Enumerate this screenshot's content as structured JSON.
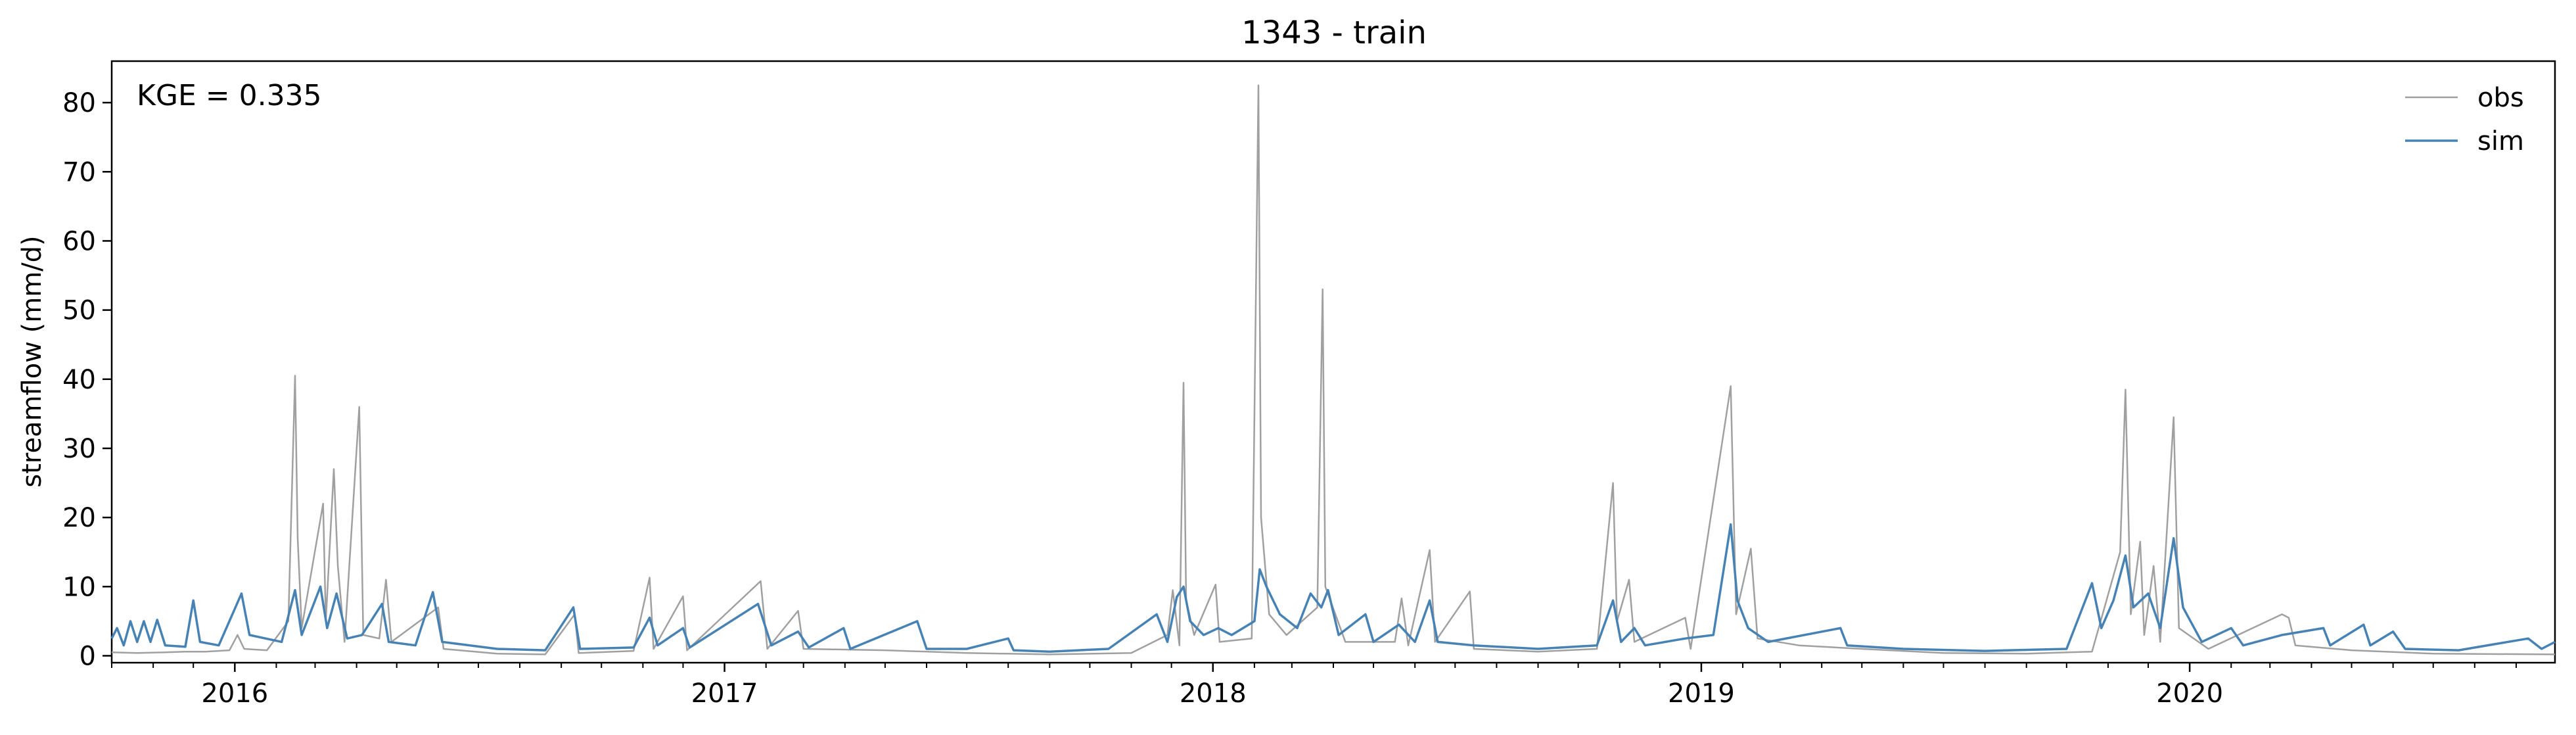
{
  "chart_data": {
    "type": "line",
    "title": "1343 - train",
    "xlabel": "",
    "ylabel": "streamflow (mm/d)",
    "annotation": "KGE = 0.335",
    "x_type": "date",
    "xlim": [
      "2015-10-01",
      "2020-09-30"
    ],
    "ylim": [
      -1,
      86
    ],
    "y_ticks": [
      0,
      10,
      20,
      30,
      40,
      50,
      60,
      70,
      80
    ],
    "x_tick_labels": [
      "2016",
      "2017",
      "2018",
      "2019",
      "2020"
    ],
    "x_ticks": [
      "2016-01-01",
      "2017-01-01",
      "2018-01-01",
      "2019-01-01",
      "2020-01-01"
    ],
    "grid": false,
    "legend_position": "top-right",
    "colors": {
      "obs": "#a0a0a0",
      "sim": "#4682b4"
    },
    "series": [
      {
        "name": "obs",
        "points": [
          [
            "2015-10-01",
            0.5
          ],
          [
            "2015-10-20",
            0.4
          ],
          [
            "2015-11-10",
            0.5
          ],
          [
            "2015-11-25",
            0.6
          ],
          [
            "2015-12-10",
            0.6
          ],
          [
            "2015-12-28",
            0.8
          ],
          [
            "2016-01-03",
            3.0
          ],
          [
            "2016-01-08",
            1.0
          ],
          [
            "2016-01-25",
            0.8
          ],
          [
            "2016-02-10",
            5.0
          ],
          [
            "2016-02-15",
            40.5
          ],
          [
            "2016-02-17",
            17.0
          ],
          [
            "2016-02-20",
            4.0
          ],
          [
            "2016-03-07",
            22.0
          ],
          [
            "2016-03-09",
            5.0
          ],
          [
            "2016-03-15",
            27.0
          ],
          [
            "2016-03-18",
            13.0
          ],
          [
            "2016-03-23",
            2.0
          ],
          [
            "2016-04-03",
            36.0
          ],
          [
            "2016-04-06",
            3.0
          ],
          [
            "2016-04-18",
            2.5
          ],
          [
            "2016-04-23",
            11.0
          ],
          [
            "2016-04-27",
            2.0
          ],
          [
            "2016-06-01",
            7.0
          ],
          [
            "2016-06-05",
            1.0
          ],
          [
            "2016-07-15",
            0.3
          ],
          [
            "2016-08-20",
            0.2
          ],
          [
            "2016-09-11",
            6.0
          ],
          [
            "2016-09-14",
            0.4
          ],
          [
            "2016-10-25",
            0.7
          ],
          [
            "2016-11-06",
            11.3
          ],
          [
            "2016-11-09",
            1.0
          ],
          [
            "2016-12-01",
            8.6
          ],
          [
            "2016-12-04",
            0.8
          ],
          [
            "2017-01-28",
            10.8
          ],
          [
            "2017-02-02",
            1.0
          ],
          [
            "2017-02-25",
            6.5
          ],
          [
            "2017-03-01",
            1.0
          ],
          [
            "2017-05-01",
            0.8
          ],
          [
            "2017-07-01",
            0.4
          ],
          [
            "2017-09-01",
            0.2
          ],
          [
            "2017-11-01",
            0.4
          ],
          [
            "2017-11-28",
            3.0
          ],
          [
            "2017-12-02",
            9.5
          ],
          [
            "2017-12-07",
            1.5
          ],
          [
            "2017-12-10",
            39.5
          ],
          [
            "2017-12-12",
            8.0
          ],
          [
            "2017-12-18",
            3.0
          ],
          [
            "2018-01-03",
            10.3
          ],
          [
            "2018-01-06",
            2.0
          ],
          [
            "2018-01-30",
            2.5
          ],
          [
            "2018-02-04",
            82.5
          ],
          [
            "2018-02-06",
            20.0
          ],
          [
            "2018-02-12",
            6.0
          ],
          [
            "2018-02-25",
            3.0
          ],
          [
            "2018-03-20",
            7.0
          ],
          [
            "2018-03-24",
            53.0
          ],
          [
            "2018-03-26",
            10.0
          ],
          [
            "2018-04-10",
            2.0
          ],
          [
            "2018-05-17",
            2.0
          ],
          [
            "2018-05-22",
            8.3
          ],
          [
            "2018-05-27",
            1.5
          ],
          [
            "2018-06-12",
            15.3
          ],
          [
            "2018-06-16",
            2.0
          ],
          [
            "2018-07-12",
            9.3
          ],
          [
            "2018-07-15",
            1.0
          ],
          [
            "2018-09-01",
            0.6
          ],
          [
            "2018-10-15",
            1.0
          ],
          [
            "2018-10-27",
            25.0
          ],
          [
            "2018-10-30",
            5.0
          ],
          [
            "2018-11-08",
            11.0
          ],
          [
            "2018-11-12",
            2.0
          ],
          [
            "2018-12-20",
            5.5
          ],
          [
            "2018-12-24",
            1.0
          ],
          [
            "2019-01-23",
            39.0
          ],
          [
            "2019-01-27",
            6.0
          ],
          [
            "2019-02-07",
            15.5
          ],
          [
            "2019-02-12",
            2.5
          ],
          [
            "2019-03-15",
            1.5
          ],
          [
            "2019-05-01",
            1.0
          ],
          [
            "2019-07-01",
            0.4
          ],
          [
            "2019-09-01",
            0.3
          ],
          [
            "2019-10-20",
            0.6
          ],
          [
            "2019-11-10",
            15.0
          ],
          [
            "2019-11-14",
            38.5
          ],
          [
            "2019-11-18",
            6.0
          ],
          [
            "2019-11-25",
            16.5
          ],
          [
            "2019-11-28",
            3.0
          ],
          [
            "2019-12-05",
            13.0
          ],
          [
            "2019-12-10",
            2.0
          ],
          [
            "2019-12-20",
            34.5
          ],
          [
            "2019-12-24",
            4.0
          ],
          [
            "2020-01-15",
            1.0
          ],
          [
            "2020-03-10",
            6.0
          ],
          [
            "2020-03-15",
            5.5
          ],
          [
            "2020-03-20",
            1.5
          ],
          [
            "2020-05-01",
            0.8
          ],
          [
            "2020-07-01",
            0.3
          ],
          [
            "2020-09-30",
            0.2
          ]
        ]
      },
      {
        "name": "sim",
        "points": [
          [
            "2015-10-01",
            2.5
          ],
          [
            "2015-10-05",
            4.0
          ],
          [
            "2015-10-10",
            1.5
          ],
          [
            "2015-10-15",
            5.0
          ],
          [
            "2015-10-20",
            2.0
          ],
          [
            "2015-10-25",
            5.0
          ],
          [
            "2015-10-30",
            2.0
          ],
          [
            "2015-11-04",
            5.2
          ],
          [
            "2015-11-10",
            1.5
          ],
          [
            "2015-11-25",
            1.3
          ],
          [
            "2015-12-01",
            8.0
          ],
          [
            "2015-12-06",
            2.0
          ],
          [
            "2015-12-20",
            1.5
          ],
          [
            "2016-01-06",
            9.0
          ],
          [
            "2016-01-12",
            3.0
          ],
          [
            "2016-02-05",
            2.0
          ],
          [
            "2016-02-15",
            9.5
          ],
          [
            "2016-02-20",
            3.0
          ],
          [
            "2016-03-05",
            10.0
          ],
          [
            "2016-03-10",
            4.0
          ],
          [
            "2016-03-17",
            9.0
          ],
          [
            "2016-03-25",
            2.5
          ],
          [
            "2016-04-05",
            3.0
          ],
          [
            "2016-04-20",
            7.5
          ],
          [
            "2016-04-25",
            2.0
          ],
          [
            "2016-05-15",
            1.5
          ],
          [
            "2016-05-28",
            9.2
          ],
          [
            "2016-06-04",
            2.0
          ],
          [
            "2016-07-15",
            1.0
          ],
          [
            "2016-08-20",
            0.8
          ],
          [
            "2016-09-10",
            7.0
          ],
          [
            "2016-09-15",
            1.0
          ],
          [
            "2016-10-25",
            1.2
          ],
          [
            "2016-11-06",
            5.5
          ],
          [
            "2016-11-12",
            1.5
          ],
          [
            "2016-12-01",
            4.0
          ],
          [
            "2016-12-06",
            1.2
          ],
          [
            "2017-01-26",
            7.5
          ],
          [
            "2017-02-05",
            1.5
          ],
          [
            "2017-02-25",
            3.5
          ],
          [
            "2017-03-05",
            1.2
          ],
          [
            "2017-03-31",
            4.0
          ],
          [
            "2017-04-05",
            1.0
          ],
          [
            "2017-05-25",
            5.0
          ],
          [
            "2017-06-01",
            1.0
          ],
          [
            "2017-07-01",
            1.0
          ],
          [
            "2017-08-01",
            2.5
          ],
          [
            "2017-08-05",
            0.8
          ],
          [
            "2017-09-01",
            0.6
          ],
          [
            "2017-10-15",
            1.0
          ],
          [
            "2017-11-20",
            6.0
          ],
          [
            "2017-11-28",
            2.0
          ],
          [
            "2017-12-05",
            8.5
          ],
          [
            "2017-12-10",
            10.0
          ],
          [
            "2017-12-15",
            5.0
          ],
          [
            "2017-12-25",
            3.0
          ],
          [
            "2018-01-05",
            4.0
          ],
          [
            "2018-01-15",
            3.0
          ],
          [
            "2018-02-01",
            5.0
          ],
          [
            "2018-02-05",
            12.5
          ],
          [
            "2018-02-10",
            10.0
          ],
          [
            "2018-02-20",
            6.0
          ],
          [
            "2018-03-05",
            4.0
          ],
          [
            "2018-03-15",
            9.0
          ],
          [
            "2018-03-23",
            7.0
          ],
          [
            "2018-03-28",
            9.5
          ],
          [
            "2018-04-05",
            3.0
          ],
          [
            "2018-04-25",
            6.0
          ],
          [
            "2018-05-01",
            2.0
          ],
          [
            "2018-05-20",
            4.5
          ],
          [
            "2018-06-01",
            2.0
          ],
          [
            "2018-06-12",
            8.0
          ],
          [
            "2018-06-18",
            2.0
          ],
          [
            "2018-07-15",
            1.5
          ],
          [
            "2018-09-01",
            1.0
          ],
          [
            "2018-10-15",
            1.5
          ],
          [
            "2018-10-27",
            8.0
          ],
          [
            "2018-11-02",
            2.0
          ],
          [
            "2018-11-12",
            4.0
          ],
          [
            "2018-11-20",
            1.5
          ],
          [
            "2018-12-20",
            2.5
          ],
          [
            "2019-01-10",
            3.0
          ],
          [
            "2019-01-23",
            19.0
          ],
          [
            "2019-01-28",
            8.0
          ],
          [
            "2019-02-05",
            4.0
          ],
          [
            "2019-02-20",
            2.0
          ],
          [
            "2019-04-15",
            4.0
          ],
          [
            "2019-04-20",
            1.5
          ],
          [
            "2019-06-01",
            1.0
          ],
          [
            "2019-08-01",
            0.7
          ],
          [
            "2019-10-01",
            1.0
          ],
          [
            "2019-10-20",
            10.5
          ],
          [
            "2019-10-27",
            4.0
          ],
          [
            "2019-11-05",
            8.0
          ],
          [
            "2019-11-14",
            14.5
          ],
          [
            "2019-11-20",
            7.0
          ],
          [
            "2019-12-01",
            9.0
          ],
          [
            "2019-12-10",
            4.0
          ],
          [
            "2019-12-20",
            17.0
          ],
          [
            "2019-12-27",
            7.0
          ],
          [
            "2020-01-10",
            2.0
          ],
          [
            "2020-02-01",
            4.0
          ],
          [
            "2020-02-10",
            1.5
          ],
          [
            "2020-03-10",
            3.0
          ],
          [
            "2020-04-10",
            4.0
          ],
          [
            "2020-04-15",
            1.5
          ],
          [
            "2020-05-10",
            4.5
          ],
          [
            "2020-05-15",
            1.5
          ],
          [
            "2020-06-01",
            3.5
          ],
          [
            "2020-06-10",
            1.0
          ],
          [
            "2020-07-20",
            0.8
          ],
          [
            "2020-09-10",
            2.5
          ],
          [
            "2020-09-20",
            1.0
          ],
          [
            "2020-09-30",
            2.0
          ]
        ]
      }
    ]
  }
}
